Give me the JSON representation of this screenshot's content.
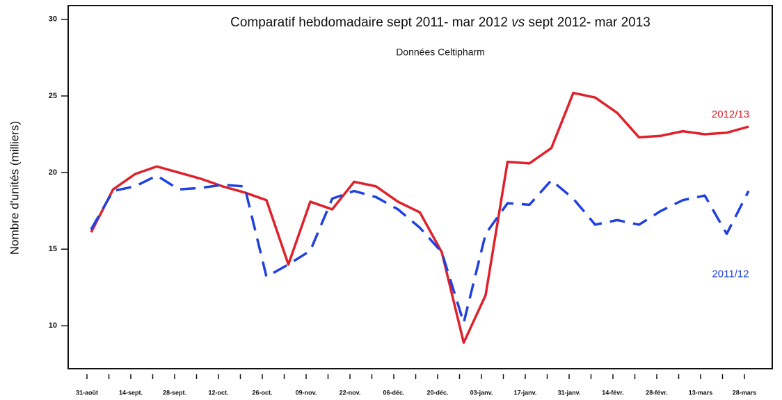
{
  "chart_data": {
    "type": "line",
    "title": [
      "Comparatif hebdomadaire sept 2011- mar 2012 ",
      "vs",
      " sept 2012- mar 2013"
    ],
    "subtitle": "Données Celtipharm",
    "y_label": "Nombre d'unités (milliers)",
    "categories": [
      "31-août",
      null,
      "14-sept.",
      null,
      "28-sept.",
      null,
      "12-oct.",
      null,
      "26-oct.",
      null,
      "09-nov.",
      null,
      "22-nov.",
      null,
      "06-déc.",
      null,
      "20-déc.",
      null,
      "03-janv.",
      null,
      "17-janv.",
      null,
      "31-janv.",
      null,
      "14-févr.",
      null,
      "28-févr.",
      null,
      "13-mars",
      null,
      "28-mars"
    ],
    "series": [
      {
        "name": "2012/13",
        "color": "#e0202a",
        "dash": false,
        "values": [
          16.1,
          18.9,
          19.9,
          20.4,
          20.0,
          19.6,
          19.1,
          18.7,
          18.2,
          14.0,
          18.1,
          17.6,
          19.4,
          19.1,
          18.1,
          17.4,
          14.8,
          8.9,
          12.0,
          20.7,
          20.6,
          21.6,
          25.2,
          24.9,
          23.9,
          22.3,
          22.4,
          22.7,
          22.5,
          22.6,
          23.0
        ]
      },
      {
        "name": "2011/12",
        "color": "#2040e0",
        "dash": true,
        "values": [
          16.3,
          18.8,
          19.1,
          19.8,
          18.9,
          19.0,
          19.2,
          19.1,
          13.2,
          14.0,
          14.9,
          18.3,
          18.8,
          18.4,
          17.6,
          16.4,
          14.8,
          10.2,
          16.0,
          18.0,
          17.9,
          19.5,
          18.3,
          16.6,
          16.9,
          16.6,
          17.5,
          18.2,
          18.5,
          16.0,
          18.8
        ]
      }
    ],
    "ylim": [
      7.2,
      30.9
    ],
    "yticks": [
      10,
      15,
      20,
      25,
      30
    ],
    "grid": false
  }
}
